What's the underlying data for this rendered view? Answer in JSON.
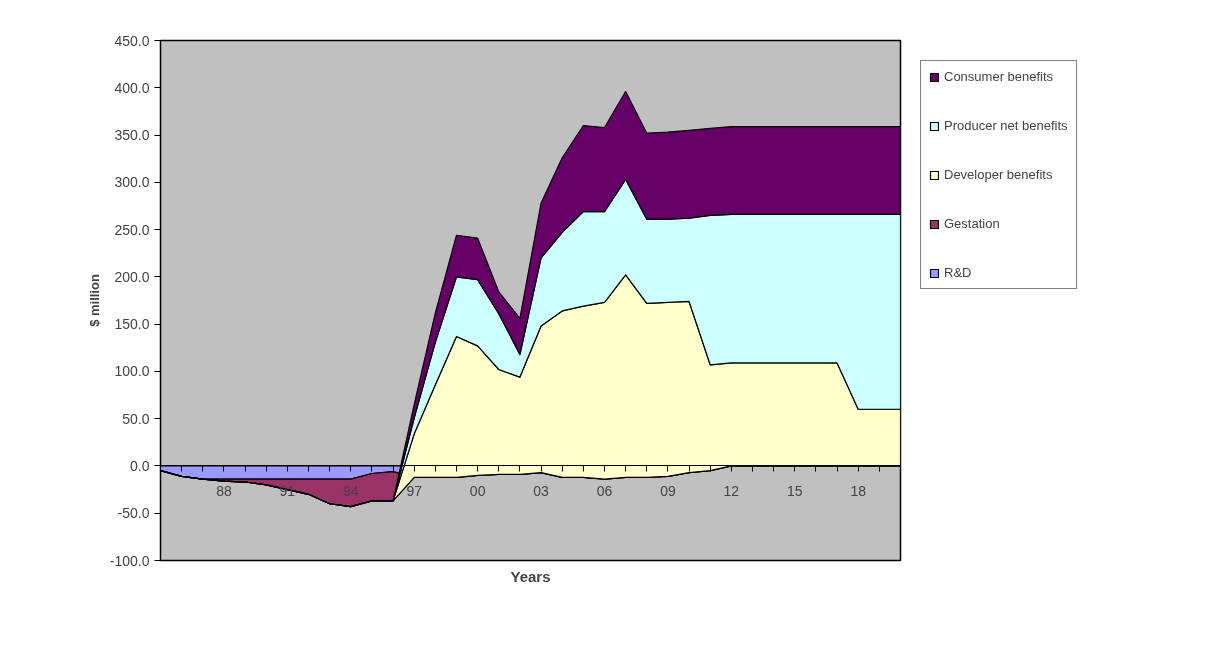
{
  "chart_data": {
    "type": "area",
    "stacked": true,
    "xlabel": "Years",
    "ylabel": "$ million",
    "categories": [
      null,
      null,
      null,
      "88",
      null,
      null,
      "91",
      null,
      null,
      "94",
      null,
      null,
      "97",
      null,
      null,
      "00",
      null,
      null,
      "03",
      null,
      null,
      "06",
      null,
      null,
      "09",
      null,
      null,
      "12",
      null,
      null,
      "15",
      null,
      null,
      "18",
      null,
      null
    ],
    "series": [
      {
        "name": "R&D",
        "color": "#9999ff",
        "values": [
          -5,
          -11,
          -14,
          -14,
          -14,
          -14,
          -14,
          -14,
          -14,
          -14,
          -8,
          -6,
          -12,
          -12,
          -12,
          -10,
          -9,
          -9,
          -7,
          -12,
          -12,
          -14,
          -12,
          -12,
          -11,
          -7,
          -5,
          0,
          0,
          0,
          0,
          0,
          0,
          0,
          0,
          0
        ]
      },
      {
        "name": "Gestation",
        "color": "#993366",
        "values": [
          0,
          0,
          0,
          -2,
          -3,
          -6,
          -11,
          -16,
          -26,
          -29,
          -29,
          -31,
          0,
          0,
          0,
          0,
          0,
          0,
          0,
          0,
          0,
          0,
          0,
          0,
          0,
          0,
          0,
          0,
          0,
          0,
          0,
          0,
          0,
          0,
          0,
          0
        ]
      },
      {
        "name": "Developer benefits",
        "color": "#ffffcc",
        "values": [
          0,
          0,
          0,
          0,
          0,
          0,
          0,
          0,
          0,
          0,
          0,
          0,
          46,
          98,
          149,
          137,
          111,
          103,
          155,
          176,
          181,
          187,
          214,
          184,
          184,
          181,
          112,
          109,
          109,
          109,
          109,
          109,
          109,
          60,
          60,
          60
        ]
      },
      {
        "name": "Producer net benefits",
        "color": "#ccffff",
        "values": [
          0,
          0,
          0,
          0,
          0,
          0,
          0,
          0,
          0,
          0,
          0,
          0,
          17,
          45,
          63,
          70,
          59,
          24,
          72,
          83,
          100,
          96,
          101,
          89,
          88,
          88,
          158,
          157,
          157,
          157,
          157,
          157,
          157,
          206,
          206,
          206
        ]
      },
      {
        "name": "Consumer benefits",
        "color": "#660066",
        "values": [
          0,
          0,
          0,
          0,
          0,
          0,
          0,
          0,
          0,
          0,
          0,
          0,
          14,
          31,
          44,
          44,
          23,
          38,
          58,
          79,
          91,
          89,
          93,
          91,
          92,
          93,
          92,
          93,
          93,
          93,
          93,
          93,
          93,
          93,
          93,
          93
        ]
      }
    ],
    "ylim": [
      -100,
      450
    ],
    "yticks": [
      {
        "value": -100,
        "label": "-100.0"
      },
      {
        "value": -50,
        "label": "-50.0"
      },
      {
        "value": 0,
        "label": "0.0"
      },
      {
        "value": 50,
        "label": "50.0"
      },
      {
        "value": 100,
        "label": "100.0"
      },
      {
        "value": 150,
        "label": "150.0"
      },
      {
        "value": 200,
        "label": "200.0"
      },
      {
        "value": 250,
        "label": "250.0"
      },
      {
        "value": 300,
        "label": "300.0"
      },
      {
        "value": 350,
        "label": "350.0"
      },
      {
        "value": 400,
        "label": "400.0"
      },
      {
        "value": 450,
        "label": "450.0"
      }
    ],
    "legend": "right",
    "grid": false
  }
}
